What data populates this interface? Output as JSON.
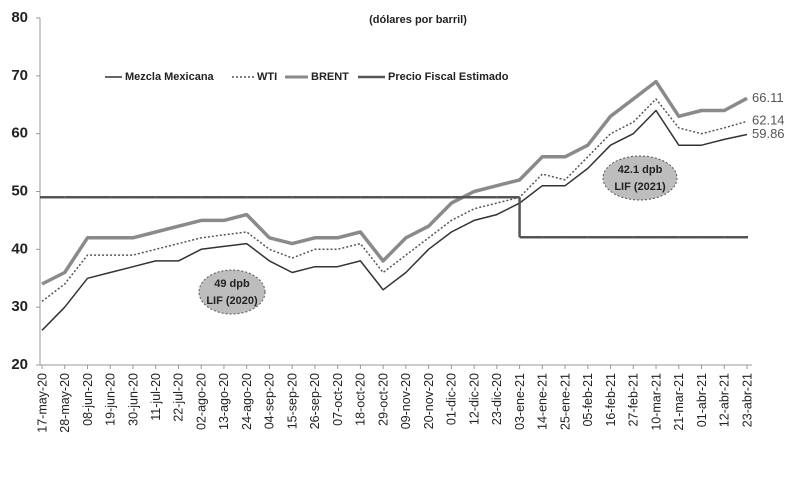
{
  "chart_data": {
    "type": "line",
    "title": "(dólares por barril)",
    "categories": [
      "17-may-20",
      "28-may-20",
      "08-jun-20",
      "19-jun-20",
      "30-jun-20",
      "11-jul-20",
      "22-jul-20",
      "02-ago-20",
      "13-ago-20",
      "24-ago-20",
      "04-sep-20",
      "15-sep-20",
      "26-sep-20",
      "07-oct-20",
      "18-oct-20",
      "29-oct-20",
      "09-nov-20",
      "20-nov-20",
      "01-dic-20",
      "12-dic-20",
      "23-dic-20",
      "03-ene-21",
      "14-ene-21",
      "25-ene-21",
      "05-feb-21",
      "16-feb-21",
      "27-feb-21",
      "10-mar-21",
      "21-mar-21",
      "01-abr-21",
      "12-abr-21",
      "23-abr-21"
    ],
    "series": [
      {
        "name": "Mezcla Mexicana",
        "color": "#333333",
        "width": 1.5,
        "dash": "none",
        "values": [
          26,
          30,
          35,
          36,
          37,
          38,
          38,
          40,
          40.5,
          41,
          38,
          36,
          37,
          37,
          38,
          33,
          36,
          40,
          43,
          45,
          46,
          48,
          51,
          51,
          54,
          58,
          60,
          64,
          58,
          58,
          59,
          59.86
        ]
      },
      {
        "name": "WTI",
        "color": "#555555",
        "width": 1.5,
        "dash": "2 2",
        "values": [
          31,
          34,
          39,
          39,
          39,
          40,
          41,
          42,
          42.5,
          43,
          40,
          38.5,
          40,
          40,
          41,
          36,
          39,
          42,
          45,
          47,
          48,
          49,
          53,
          52,
          56,
          60,
          62,
          66,
          61,
          60,
          61,
          62.14
        ]
      },
      {
        "name": "BRENT",
        "color": "#8a8a8a",
        "width": 3.5,
        "dash": "none",
        "values": [
          34,
          36,
          42,
          42,
          42,
          43,
          44,
          45,
          45,
          46,
          42,
          41,
          42,
          42,
          43,
          38,
          42,
          44,
          48,
          50,
          51,
          52,
          56,
          56,
          58,
          63,
          66,
          69,
          63,
          64,
          64,
          66.11
        ]
      },
      {
        "name": "Precio Fiscal Estimado",
        "color": "#555555",
        "width": 2.5,
        "dash": "none",
        "step": true,
        "values": [
          49,
          49,
          49,
          49,
          49,
          49,
          49,
          49,
          49,
          49,
          49,
          49,
          49,
          49,
          49,
          49,
          49,
          49,
          49,
          49,
          49,
          42.1,
          42.1,
          42.1,
          42.1,
          42.1,
          42.1,
          42.1,
          42.1,
          42.1,
          42.1,
          42.1
        ]
      }
    ],
    "ylim": [
      20,
      80
    ],
    "yticks": [
      20,
      30,
      40,
      50,
      60,
      70,
      80
    ],
    "annotations": [
      {
        "text": [
          "49 dpb",
          "LIF (2020)"
        ]
      },
      {
        "text": [
          "42.1 dpb",
          "LIF (2021)"
        ]
      }
    ]
  }
}
